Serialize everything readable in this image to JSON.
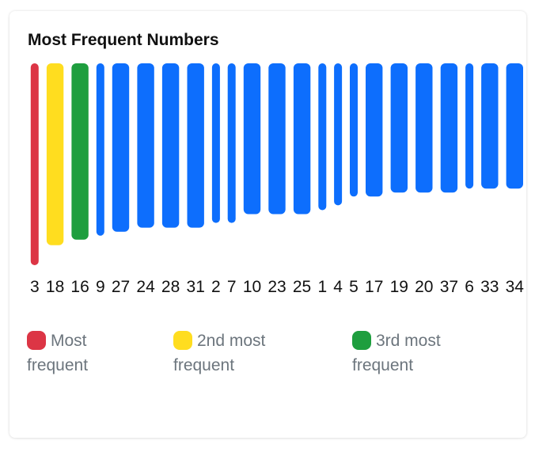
{
  "title": "Most Frequent Numbers",
  "colors": {
    "most": "#dc3545",
    "second": "#ffdd1f",
    "third": "#1e9e3e",
    "default": "#0d6efd"
  },
  "chart_data": {
    "type": "bar",
    "title": "Most Frequent Numbers",
    "categories": [
      "3",
      "18",
      "16",
      "9",
      "27",
      "24",
      "28",
      "31",
      "2",
      "7",
      "10",
      "23",
      "25",
      "1",
      "4",
      "5",
      "17",
      "19",
      "20",
      "37",
      "6",
      "33",
      "34"
    ],
    "values": [
      253,
      228,
      221,
      216,
      211,
      206,
      206,
      206,
      200,
      200,
      189,
      189,
      189,
      184,
      178,
      167,
      167,
      162,
      162,
      162,
      157,
      157,
      157
    ],
    "ylim": [
      0,
      253
    ],
    "highlight": [
      "most",
      "second",
      "third"
    ]
  },
  "legend": [
    {
      "label": "Most frequent",
      "color_key": "most"
    },
    {
      "label": "2nd most frequent",
      "color_key": "second"
    },
    {
      "label": "3rd most frequent",
      "color_key": "third"
    }
  ]
}
